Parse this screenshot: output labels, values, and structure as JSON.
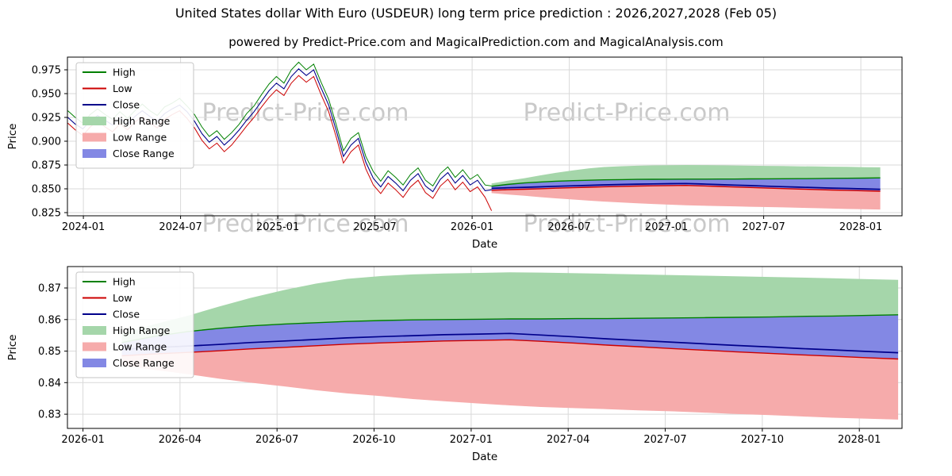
{
  "title": "United States dollar With Euro (USDEUR) long term price prediction : 2026,2027,2028 (Feb 05)",
  "subtitle": "powered by Predict-Price.com and MagicalPrediction.com and MagicalAnalysis.com",
  "watermark_text": "Predict-Price.com",
  "colors": {
    "high_line": "#008000",
    "low_line": "#cc0000",
    "close_line": "#00008b",
    "high_band": "#a5d6aa",
    "low_band": "#f6abab",
    "close_band": "#8388e4",
    "watermark": "#c9c9c9",
    "grid": "#d9d9d9",
    "spine": "#000000",
    "text": "#000000"
  },
  "legend": {
    "items": [
      {
        "label": "High",
        "type": "line",
        "color_key": "high_line"
      },
      {
        "label": "Low",
        "type": "line",
        "color_key": "low_line"
      },
      {
        "label": "Close",
        "type": "line",
        "color_key": "close_line"
      },
      {
        "label": "High Range",
        "type": "patch",
        "color_key": "high_band"
      },
      {
        "label": "Low Range",
        "type": "patch",
        "color_key": "low_band"
      },
      {
        "label": "Close Range",
        "type": "patch",
        "color_key": "close_band"
      }
    ]
  },
  "chart_data": {
    "type": "line",
    "title": "United States dollar With Euro (USDEUR) long term price prediction : 2026,2027,2028 (Feb 05)",
    "subtitle": "powered by Predict-Price.com and MagicalPrediction.com and MagicalAnalysis.com",
    "xlabel": "Date",
    "ylabel": "Price",
    "charts": [
      {
        "name": "history_with_forecast",
        "grid": true,
        "legend_position": "upper left",
        "xlim": [
          2023.918,
          2028.212
        ],
        "ylim": [
          0.8217,
          0.9883
        ],
        "xtick_values": [
          2024.0,
          2024.5,
          2025.0,
          2025.5,
          2026.0,
          2026.5,
          2027.0,
          2027.5,
          2028.0
        ],
        "xtick_labels": [
          "2024-01",
          "2024-07",
          "2025-01",
          "2025-07",
          "2026-01",
          "2026-07",
          "2027-01",
          "2027-07",
          "2028-01"
        ],
        "ytick_values": [
          0.825,
          0.85,
          0.875,
          0.9,
          0.925,
          0.95,
          0.975
        ],
        "ytick_labels": [
          "0.825",
          "0.850",
          "0.875",
          "0.900",
          "0.925",
          "0.950",
          "0.975"
        ],
        "watermarks": [
          {
            "x": 0.285,
            "y": 0.4
          },
          {
            "x": 0.67,
            "y": 0.4
          },
          {
            "x": 0.285,
            "y": 1.1
          },
          {
            "x": 0.67,
            "y": 1.1
          }
        ]
      },
      {
        "name": "forecast_detail",
        "grid": true,
        "legend_position": "upper left",
        "xlim": [
          2025.96,
          2028.11
        ],
        "ylim": [
          0.8255,
          0.8768
        ],
        "xtick_values": [
          2026.0,
          2026.25,
          2026.5,
          2026.75,
          2027.0,
          2027.25,
          2027.5,
          2027.75,
          2028.0
        ],
        "xtick_labels": [
          "2026-01",
          "2026-04",
          "2026-07",
          "2026-10",
          "2027-01",
          "2027-04",
          "2027-07",
          "2027-10",
          "2028-01"
        ],
        "ytick_values": [
          0.83,
          0.84,
          0.85,
          0.86,
          0.87
        ],
        "ytick_labels": [
          "0.83",
          "0.84",
          "0.85",
          "0.86",
          "0.87"
        ],
        "watermarks": [
          {
            "x": 0.285,
            "y": 0.53
          },
          {
            "x": 0.67,
            "y": 0.53
          }
        ]
      }
    ],
    "historical": {
      "x": [
        2023.92,
        2023.958,
        2023.997,
        2024.035,
        2024.073,
        2024.112,
        2024.15,
        2024.188,
        2024.227,
        2024.265,
        2024.303,
        2024.342,
        2024.38,
        2024.418,
        2024.457,
        2024.495,
        2024.533,
        2024.572,
        2024.61,
        2024.648,
        2024.687,
        2024.725,
        2024.763,
        2024.802,
        2024.84,
        2024.878,
        2024.917,
        2024.955,
        2024.993,
        2025.032,
        2025.07,
        2025.108,
        2025.147,
        2025.185,
        2025.223,
        2025.262,
        2025.3,
        2025.338,
        2025.377,
        2025.415,
        2025.453,
        2025.492,
        2025.53,
        2025.568,
        2025.607,
        2025.645,
        2025.683,
        2025.722,
        2025.76,
        2025.798,
        2025.837,
        2025.875,
        2025.913,
        2025.952,
        2025.99,
        2026.028,
        2026.067,
        2026.1
      ],
      "high": [
        0.932,
        0.925,
        0.919,
        0.928,
        0.934,
        0.928,
        0.923,
        0.931,
        0.924,
        0.932,
        0.939,
        0.932,
        0.927,
        0.936,
        0.94,
        0.945,
        0.937,
        0.928,
        0.915,
        0.905,
        0.911,
        0.902,
        0.909,
        0.918,
        0.929,
        0.937,
        0.949,
        0.96,
        0.968,
        0.961,
        0.975,
        0.983,
        0.975,
        0.981,
        0.962,
        0.944,
        0.918,
        0.89,
        0.903,
        0.909,
        0.884,
        0.868,
        0.858,
        0.869,
        0.862,
        0.854,
        0.865,
        0.872,
        0.859,
        0.853,
        0.866,
        0.873,
        0.862,
        0.87,
        0.86,
        0.865,
        0.854,
        0.853
      ],
      "low": [
        0.919,
        0.912,
        0.906,
        0.915,
        0.921,
        0.915,
        0.91,
        0.918,
        0.912,
        0.92,
        0.926,
        0.919,
        0.914,
        0.923,
        0.928,
        0.932,
        0.924,
        0.914,
        0.901,
        0.892,
        0.898,
        0.889,
        0.896,
        0.906,
        0.916,
        0.925,
        0.936,
        0.946,
        0.954,
        0.948,
        0.961,
        0.969,
        0.962,
        0.968,
        0.949,
        0.931,
        0.905,
        0.877,
        0.889,
        0.896,
        0.871,
        0.854,
        0.845,
        0.856,
        0.849,
        0.841,
        0.852,
        0.859,
        0.846,
        0.84,
        0.853,
        0.86,
        0.849,
        0.857,
        0.847,
        0.852,
        0.841,
        0.827
      ],
      "close": [
        0.925,
        0.918,
        0.913,
        0.921,
        0.927,
        0.922,
        0.917,
        0.924,
        0.918,
        0.926,
        0.932,
        0.926,
        0.921,
        0.929,
        0.934,
        0.938,
        0.931,
        0.921,
        0.908,
        0.899,
        0.905,
        0.896,
        0.903,
        0.912,
        0.922,
        0.931,
        0.942,
        0.953,
        0.961,
        0.955,
        0.968,
        0.976,
        0.969,
        0.975,
        0.956,
        0.938,
        0.912,
        0.884,
        0.896,
        0.903,
        0.878,
        0.861,
        0.852,
        0.863,
        0.856,
        0.848,
        0.859,
        0.866,
        0.853,
        0.847,
        0.86,
        0.867,
        0.856,
        0.864,
        0.854,
        0.859,
        0.848,
        0.849
      ]
    },
    "prediction": {
      "x": [
        2026.1,
        2026.18,
        2026.27,
        2026.35,
        2026.43,
        2026.52,
        2026.6,
        2026.68,
        2026.77,
        2026.85,
        2026.93,
        2027.02,
        2027.1,
        2027.18,
        2027.27,
        2027.35,
        2027.43,
        2027.52,
        2027.6,
        2027.68,
        2027.77,
        2027.85,
        2027.93,
        2028.02,
        2028.1
      ],
      "close": [
        0.8505,
        0.8511,
        0.8516,
        0.8521,
        0.8527,
        0.8532,
        0.8537,
        0.8542,
        0.8546,
        0.8549,
        0.8552,
        0.8554,
        0.8556,
        0.8551,
        0.8545,
        0.8539,
        0.8534,
        0.8528,
        0.8523,
        0.8518,
        0.8513,
        0.8508,
        0.8504,
        0.8499,
        0.8495
      ],
      "high": [
        0.8527,
        0.8546,
        0.8562,
        0.8572,
        0.858,
        0.8586,
        0.859,
        0.8594,
        0.8597,
        0.8599,
        0.86,
        0.8601,
        0.8602,
        0.8602,
        0.8603,
        0.8603,
        0.8604,
        0.8605,
        0.8606,
        0.8607,
        0.8608,
        0.861,
        0.8611,
        0.8613,
        0.8615
      ],
      "low": [
        0.8485,
        0.8491,
        0.8496,
        0.8501,
        0.8507,
        0.8512,
        0.8517,
        0.8522,
        0.8526,
        0.8529,
        0.8532,
        0.8534,
        0.8536,
        0.8531,
        0.8525,
        0.8519,
        0.8514,
        0.8508,
        0.8503,
        0.8498,
        0.8493,
        0.8488,
        0.8484,
        0.8479,
        0.8475
      ],
      "high_range_upper": [
        0.8556,
        0.8584,
        0.8612,
        0.8641,
        0.8668,
        0.8694,
        0.8714,
        0.8729,
        0.8738,
        0.8743,
        0.8746,
        0.8748,
        0.875,
        0.8749,
        0.8747,
        0.8745,
        0.8743,
        0.8741,
        0.8739,
        0.8737,
        0.8735,
        0.8733,
        0.8731,
        0.8728,
        0.8726
      ],
      "low_range_lower": [
        0.8455,
        0.8441,
        0.8427,
        0.8413,
        0.84,
        0.8388,
        0.8376,
        0.8366,
        0.8357,
        0.8348,
        0.8341,
        0.8334,
        0.8328,
        0.8323,
        0.8319,
        0.8316,
        0.8312,
        0.8309,
        0.8305,
        0.8301,
        0.8297,
        0.8293,
        0.8289,
        0.8286,
        0.8283
      ]
    }
  }
}
